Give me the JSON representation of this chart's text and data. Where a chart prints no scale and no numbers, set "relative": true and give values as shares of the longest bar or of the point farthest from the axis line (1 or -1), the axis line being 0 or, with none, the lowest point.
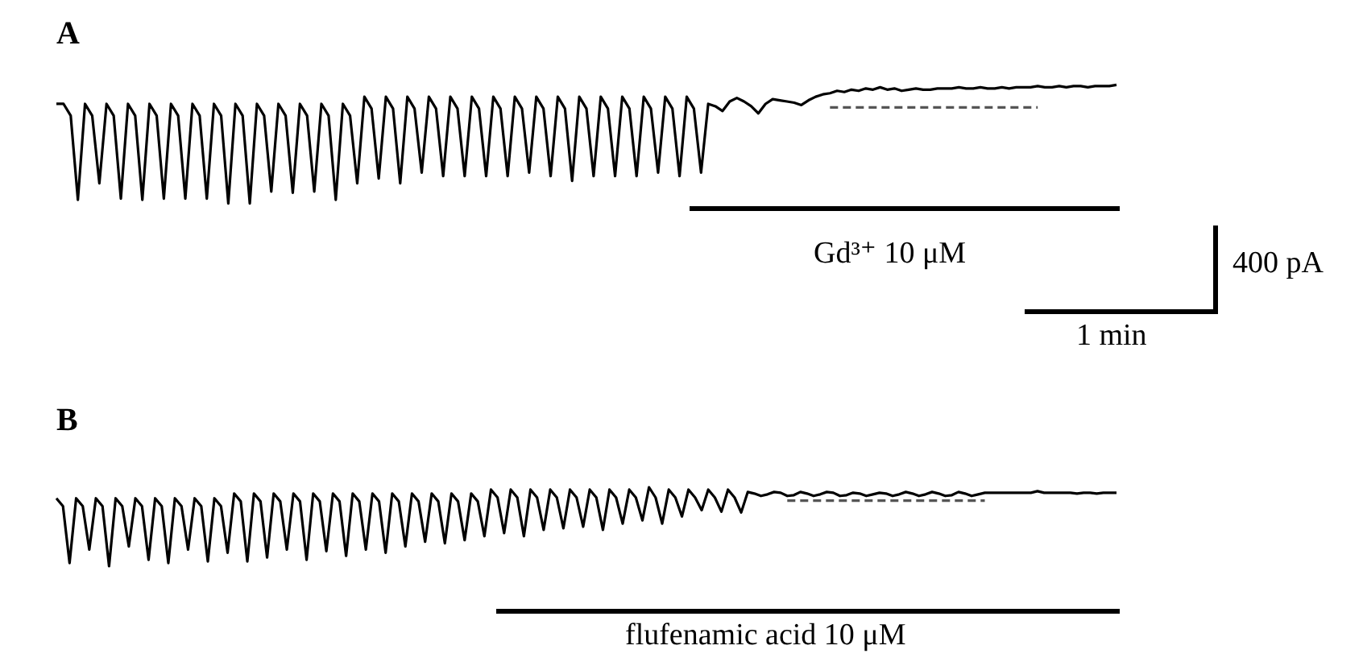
{
  "chart_data": [
    {
      "type": "line",
      "title": "A",
      "relative": true,
      "marker": "none",
      "annotations": [
        "Gd³⁺ 10 μM",
        "400 pA",
        "1 min"
      ],
      "categories": [
        null,
        null,
        null,
        null,
        null,
        null,
        null,
        null,
        null,
        null,
        null,
        null,
        null,
        null,
        null,
        null,
        null,
        null,
        null,
        null,
        null,
        null,
        null,
        null,
        null,
        null,
        null,
        null,
        null,
        null,
        null,
        null,
        null,
        null,
        null,
        null,
        null,
        null,
        null,
        null,
        null,
        null,
        null,
        null,
        null,
        null,
        null,
        null,
        null,
        null,
        null,
        null,
        null,
        null,
        null,
        null,
        null,
        null,
        null,
        null,
        null,
        null,
        null,
        null,
        null,
        null,
        null,
        null,
        null,
        null,
        null,
        null,
        null,
        null,
        null,
        null,
        null,
        null,
        null,
        null,
        null,
        null,
        null,
        null,
        null,
        null,
        null,
        null,
        null,
        null,
        null,
        null,
        null,
        null,
        null,
        null,
        null,
        null,
        null,
        null,
        null,
        null,
        null,
        null,
        null,
        null,
        null,
        null,
        null,
        null,
        null,
        null,
        null,
        null,
        null,
        null,
        null,
        null,
        null,
        null,
        null,
        null,
        null,
        null,
        null,
        null,
        null,
        null,
        null,
        null,
        null,
        null,
        null,
        null,
        null,
        null,
        null,
        null,
        null,
        null,
        null,
        null,
        null,
        null,
        null,
        null,
        null,
        null,
        null
      ],
      "series": [
        {
          "color": "#000000",
          "line_style": "solid",
          "values": [
            0.84,
            0.84,
            0.74,
            0.03,
            0.84,
            0.74,
            0.17,
            0.84,
            0.74,
            0.04,
            0.84,
            0.74,
            0.03,
            0.84,
            0.74,
            0.04,
            0.84,
            0.74,
            0.04,
            0.84,
            0.74,
            0.04,
            0.84,
            0.74,
            0,
            0.84,
            0.74,
            0,
            0.84,
            0.74,
            0.1,
            0.84,
            0.74,
            0.09,
            0.84,
            0.74,
            0.1,
            0.84,
            0.74,
            0.03,
            0.84,
            0.74,
            0.17,
            0.9,
            0.8,
            0.21,
            0.9,
            0.8,
            0.17,
            0.9,
            0.8,
            0.26,
            0.9,
            0.8,
            0.23,
            0.9,
            0.8,
            0.23,
            0.9,
            0.8,
            0.23,
            0.9,
            0.8,
            0.23,
            0.9,
            0.8,
            0.26,
            0.9,
            0.8,
            0.23,
            0.9,
            0.8,
            0.19,
            0.9,
            0.8,
            0.23,
            0.9,
            0.8,
            0.23,
            0.9,
            0.8,
            0.23,
            0.9,
            0.8,
            0.26,
            0.9,
            0.8,
            0.23,
            0.9,
            0.8,
            0.26,
            0.84,
            0.82,
            0.78,
            0.86,
            0.89,
            0.86,
            0.82,
            0.76,
            0.84,
            0.88,
            0.87,
            0.86,
            0.85,
            0.83,
            0.87,
            0.9,
            0.92,
            0.93,
            0.95,
            0.94,
            0.96,
            0.95,
            0.97,
            0.96,
            0.98,
            0.96,
            0.97,
            0.95,
            0.96,
            0.97,
            0.96,
            0.96,
            0.97,
            0.97,
            0.97,
            0.98,
            0.97,
            0.97,
            0.98,
            0.97,
            0.97,
            0.98,
            0.97,
            0.98,
            0.98,
            0.98,
            0.99,
            0.98,
            0.98,
            0.99,
            0.98,
            0.99,
            0.99,
            0.98,
            0.99,
            0.99,
            0.99,
            1.0
          ]
        },
        {
          "color": "#555555",
          "line_style": "dashed",
          "values": [
            null,
            null,
            null,
            null,
            null,
            null,
            null,
            null,
            null,
            null,
            null,
            null,
            null,
            null,
            null,
            null,
            null,
            null,
            null,
            null,
            null,
            null,
            null,
            null,
            null,
            null,
            null,
            null,
            null,
            null,
            null,
            null,
            null,
            null,
            null,
            null,
            null,
            null,
            null,
            null,
            null,
            null,
            null,
            null,
            null,
            null,
            null,
            null,
            null,
            null,
            null,
            null,
            null,
            null,
            null,
            null,
            null,
            null,
            null,
            null,
            null,
            null,
            null,
            null,
            null,
            null,
            null,
            null,
            null,
            null,
            null,
            null,
            null,
            null,
            null,
            null,
            null,
            null,
            null,
            null,
            null,
            null,
            null,
            null,
            null,
            null,
            null,
            null,
            null,
            null,
            null,
            null,
            null,
            null,
            null,
            null,
            null,
            null,
            null,
            null,
            null,
            null,
            null,
            null,
            null,
            null,
            null,
            null,
            0.81,
            0.81,
            0.81,
            0.81,
            0.81,
            0.81,
            0.81,
            0.81,
            0.81,
            0.81,
            0.81,
            0.81,
            0.81,
            0.81,
            0.81,
            0.81,
            0.81,
            0.81,
            0.81,
            0.81,
            0.81,
            0.81,
            0.81,
            0.81,
            0.81,
            0.81,
            0.81,
            0.81,
            0.81,
            0.81,
            null,
            null,
            null,
            null,
            null,
            null,
            null,
            null,
            null,
            null,
            null
          ]
        }
      ]
    },
    {
      "type": "line",
      "title": "B",
      "relative": true,
      "marker": "none",
      "annotations": [
        "flufenamic acid 10 μM"
      ],
      "categories": [
        null,
        null,
        null,
        null,
        null,
        null,
        null,
        null,
        null,
        null,
        null,
        null,
        null,
        null,
        null,
        null,
        null,
        null,
        null,
        null,
        null,
        null,
        null,
        null,
        null,
        null,
        null,
        null,
        null,
        null,
        null,
        null,
        null,
        null,
        null,
        null,
        null,
        null,
        null,
        null,
        null,
        null,
        null,
        null,
        null,
        null,
        null,
        null,
        null,
        null,
        null,
        null,
        null,
        null,
        null,
        null,
        null,
        null,
        null,
        null,
        null,
        null,
        null,
        null,
        null,
        null,
        null,
        null,
        null,
        null,
        null,
        null,
        null,
        null,
        null,
        null,
        null,
        null,
        null,
        null,
        null,
        null,
        null,
        null,
        null,
        null,
        null,
        null,
        null,
        null,
        null,
        null,
        null,
        null,
        null,
        null,
        null,
        null,
        null,
        null,
        null,
        null,
        null,
        null,
        null,
        null,
        null,
        null,
        null,
        null,
        null,
        null,
        null,
        null,
        null,
        null,
        null,
        null,
        null,
        null,
        null,
        null,
        null,
        null,
        null,
        null,
        null,
        null,
        null,
        null,
        null,
        null,
        null,
        null,
        null,
        null,
        null,
        null,
        null,
        null,
        null,
        null,
        null,
        null,
        null,
        null,
        null,
        null,
        null,
        null,
        null,
        null,
        null,
        null,
        null,
        null,
        null,
        null,
        null,
        null,
        null,
        null
      ],
      "series": [
        {
          "color": "#000000",
          "line_style": "solid",
          "values": [
            0.86,
            0.76,
            0.04,
            0.86,
            0.76,
            0.21,
            0.86,
            0.76,
            0,
            0.86,
            0.76,
            0.25,
            0.86,
            0.76,
            0.08,
            0.86,
            0.76,
            0.04,
            0.86,
            0.76,
            0.21,
            0.86,
            0.76,
            0.06,
            0.86,
            0.76,
            0.17,
            0.92,
            0.82,
            0.06,
            0.92,
            0.82,
            0.11,
            0.92,
            0.82,
            0.21,
            0.92,
            0.82,
            0.08,
            0.92,
            0.82,
            0.19,
            0.92,
            0.82,
            0.13,
            0.92,
            0.82,
            0.21,
            0.92,
            0.82,
            0.17,
            0.92,
            0.82,
            0.25,
            0.92,
            0.82,
            0.31,
            0.92,
            0.82,
            0.29,
            0.92,
            0.82,
            0.33,
            0.92,
            0.82,
            0.38,
            0.97,
            0.87,
            0.42,
            0.97,
            0.87,
            0.38,
            0.97,
            0.87,
            0.46,
            0.97,
            0.87,
            0.48,
            0.97,
            0.87,
            0.5,
            0.97,
            0.87,
            0.46,
            0.97,
            0.87,
            0.54,
            0.97,
            0.87,
            0.58,
            1.0,
            0.87,
            0.54,
            0.97,
            0.87,
            0.63,
            0.97,
            0.87,
            0.71,
            0.97,
            0.87,
            0.69,
            0.97,
            0.87,
            0.68,
            0.94,
            0.92,
            0.89,
            0.91,
            0.94,
            0.93,
            0.89,
            0.9,
            0.94,
            0.92,
            0.89,
            0.91,
            0.94,
            0.93,
            0.89,
            0.9,
            0.93,
            0.92,
            0.89,
            0.91,
            0.93,
            0.92,
            0.89,
            0.91,
            0.94,
            0.92,
            0.89,
            0.91,
            0.94,
            0.92,
            0.89,
            0.9,
            0.94,
            0.92,
            0.89,
            0.91,
            0.93,
            0.93,
            0.93,
            0.93,
            0.93,
            0.93,
            0.93,
            0.93,
            0.95,
            0.93,
            0.93,
            0.93,
            0.93,
            0.93,
            0.92,
            0.93,
            0.93,
            0.92,
            0.93,
            0.93,
            0.93
          ]
        },
        {
          "color": "#555555",
          "line_style": "dashed",
          "values": [
            null,
            null,
            null,
            null,
            null,
            null,
            null,
            null,
            null,
            null,
            null,
            null,
            null,
            null,
            null,
            null,
            null,
            null,
            null,
            null,
            null,
            null,
            null,
            null,
            null,
            null,
            null,
            null,
            null,
            null,
            null,
            null,
            null,
            null,
            null,
            null,
            null,
            null,
            null,
            null,
            null,
            null,
            null,
            null,
            null,
            null,
            null,
            null,
            null,
            null,
            null,
            null,
            null,
            null,
            null,
            null,
            null,
            null,
            null,
            null,
            null,
            null,
            null,
            null,
            null,
            null,
            null,
            null,
            null,
            null,
            null,
            null,
            null,
            null,
            null,
            null,
            null,
            null,
            null,
            null,
            null,
            null,
            null,
            null,
            null,
            null,
            null,
            null,
            null,
            null,
            null,
            null,
            null,
            null,
            null,
            null,
            null,
            null,
            null,
            null,
            null,
            null,
            null,
            null,
            null,
            null,
            null,
            null,
            null,
            null,
            null,
            0.83,
            0.83,
            0.83,
            0.83,
            0.83,
            0.83,
            0.83,
            0.83,
            0.83,
            0.83,
            0.83,
            0.83,
            0.83,
            0.83,
            0.83,
            0.83,
            0.83,
            0.83,
            0.83,
            0.83,
            0.83,
            0.83,
            0.83,
            0.83,
            0.83,
            0.83,
            0.83,
            0.83,
            0.83,
            0.83,
            0.83,
            null,
            null,
            null,
            null,
            null,
            null,
            null,
            null,
            null,
            null,
            null,
            null,
            null,
            null,
            null,
            null,
            null,
            null,
            null,
            null
          ]
        }
      ]
    }
  ]
}
